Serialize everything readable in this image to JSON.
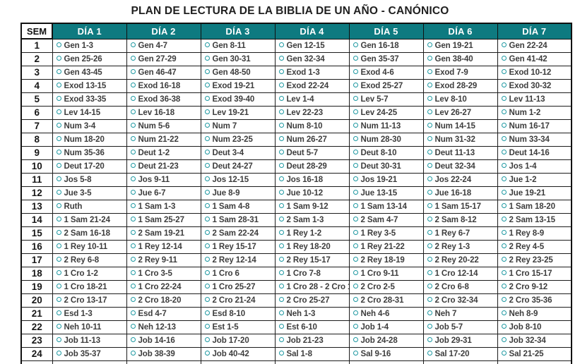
{
  "title": "PLAN DE LECTURA DE LA BIBLIA DE UN AÑO - CANÓNICO",
  "colors": {
    "header_bg": "#0e7a80",
    "circle": "#1d98a1",
    "cell_text": "#3d3d3d"
  },
  "table": {
    "columns": [
      "SEM",
      "DÍA 1",
      "DÍA 2",
      "DÍA 3",
      "DÍA 4",
      "DÍA 5",
      "DÍA 6",
      "DÍA 7"
    ],
    "rows": [
      {
        "week": "1",
        "days": [
          "Gen 1-3",
          "Gen 4-7",
          "Gen 8-11",
          "Gen 12-15",
          "Gen 16-18",
          "Gen 19-21",
          "Gen 22-24"
        ]
      },
      {
        "week": "2",
        "days": [
          "Gen 25-26",
          "Gen 27-29",
          "Gen 30-31",
          "Gen 32-34",
          "Gen 35-37",
          "Gen 38-40",
          "Gen 41-42"
        ]
      },
      {
        "week": "3",
        "days": [
          "Gen 43-45",
          "Gen 46-47",
          "Gen 48-50",
          "Exod 1-3",
          "Exod 4-6",
          "Exod 7-9",
          "Exod 10-12"
        ]
      },
      {
        "week": "4",
        "days": [
          "Exod 13-15",
          "Exod 16-18",
          "Exod 19-21",
          "Exod 22-24",
          "Exod 25-27",
          "Exod 28-29",
          "Exod 30-32"
        ]
      },
      {
        "week": "5",
        "days": [
          "Exod 33-35",
          "Exod 36-38",
          "Exod 39-40",
          "Lev 1-4",
          "Lev 5-7",
          "Lev 8-10",
          "Lev 11-13"
        ]
      },
      {
        "week": "6",
        "days": [
          "Lev 14-15",
          "Lev 16-18",
          "Lev 19-21",
          "Lev 22-23",
          "Lev 24-25",
          "Lev 26-27",
          "Num 1-2"
        ]
      },
      {
        "week": "7",
        "days": [
          "Num 3-4",
          "Num 5-6",
          "Num 7",
          "Num 8-10",
          "Num 11-13",
          "Num 14-15",
          "Num 16-17"
        ]
      },
      {
        "week": "8",
        "days": [
          "Num 18-20",
          "Num 21-22",
          "Num 23-25",
          "Num 26-27",
          "Num 28-30",
          "Num 31-32",
          "Num 33-34"
        ]
      },
      {
        "week": "9",
        "days": [
          "Num 35-36",
          "Deut 1-2",
          "Deut 3-4",
          "Deut 5-7",
          "Deut 8-10",
          "Deut 11-13",
          "Deut 14-16"
        ]
      },
      {
        "week": "10",
        "days": [
          "Deut 17-20",
          "Deut 21-23",
          "Deut 24-27",
          "Deut 28-29",
          "Deut 30-31",
          "Deut 32-34",
          "Jos 1-4"
        ]
      },
      {
        "week": "11",
        "days": [
          "Jos 5-8",
          "Jos 9-11",
          "Jos 12-15",
          "Jos 16-18",
          "Jos 19-21",
          "Jos 22-24",
          "Jue 1-2"
        ]
      },
      {
        "week": "12",
        "days": [
          "Jue 3-5",
          "Jue 6-7",
          "Jue 8-9",
          "Jue 10-12",
          "Jue 13-15",
          "Jue 16-18",
          "Jue 19-21"
        ]
      },
      {
        "week": "13",
        "days": [
          "Ruth",
          "1 Sam 1-3",
          "1 Sam 4-8",
          "1 Sam 9-12",
          "1 Sam 13-14",
          "1 Sam 15-17",
          "1 Sam 18-20"
        ]
      },
      {
        "week": "14",
        "days": [
          "1 Sam 21-24",
          "1 Sam 25-27",
          "1 Sam 28-31",
          "2 Sam 1-3",
          "2 Sam 4-7",
          "2 Sam 8-12",
          "2 Sam 13-15"
        ]
      },
      {
        "week": "15",
        "days": [
          "2 Sam 16-18",
          "2 Sam 19-21",
          "2 Sam 22-24",
          "1 Rey 1-2",
          "1 Rey 3-5",
          "1 Rey 6-7",
          "1 Rey 8-9"
        ]
      },
      {
        "week": "16",
        "days": [
          "1 Rey 10-11",
          "1 Rey 12-14",
          "1 Rey 15-17",
          "1 Rey 18-20",
          "1 Rey 21-22",
          "2 Rey 1-3",
          "2 Rey 4-5"
        ]
      },
      {
        "week": "17",
        "days": [
          "2 Rey 6-8",
          "2 Rey 9-11",
          "2 Rey 12-14",
          "2 Rey 15-17",
          "2 Rey 18-19",
          "2 Rey 20-22",
          "2 Rey 23-25"
        ]
      },
      {
        "week": "18",
        "days": [
          "1 Cro 1-2",
          "1 Cro 3-5",
          "1 Cro 6",
          "1 Cro 7-8",
          "1 Cro 9-11",
          "1 Cro 12-14",
          "1 Cro 15-17"
        ]
      },
      {
        "week": "19",
        "days": [
          "1 Cro 18-21",
          "1 Cro 22-24",
          "1 Cro 25-27",
          "1 Cro 28 - 2 Cro 1",
          "2 Cro 2-5",
          "2 Cro 6-8",
          "2 Cro 9-12"
        ]
      },
      {
        "week": "20",
        "days": [
          "2 Cro 13-17",
          "2 Cro 18-20",
          "2 Cro 21-24",
          "2 Cro 25-27",
          "2 Cro 28-31",
          "2 Cro 32-34",
          "2 Cro 35-36"
        ]
      },
      {
        "week": "21",
        "days": [
          "Esd 1-3",
          "Esd 4-7",
          "Esd 8-10",
          "Neh 1-3",
          "Neh 4-6",
          "Neh 7",
          "Neh 8-9"
        ]
      },
      {
        "week": "22",
        "days": [
          "Neh 10-11",
          "Neh 12-13",
          "Est 1-5",
          "Est 6-10",
          "Job 1-4",
          "Job 5-7",
          "Job 8-10"
        ]
      },
      {
        "week": "23",
        "days": [
          "Job 11-13",
          "Job 14-16",
          "Job 17-20",
          "Job 21-23",
          "Job 24-28",
          "Job 29-31",
          "Job 32-34"
        ]
      },
      {
        "week": "24",
        "days": [
          "Job 35-37",
          "Job 38-39",
          "Job 40-42",
          "Sal 1-8",
          "Sal 9-16",
          "Sal 17-20",
          "Sal 21-25"
        ]
      }
    ]
  }
}
